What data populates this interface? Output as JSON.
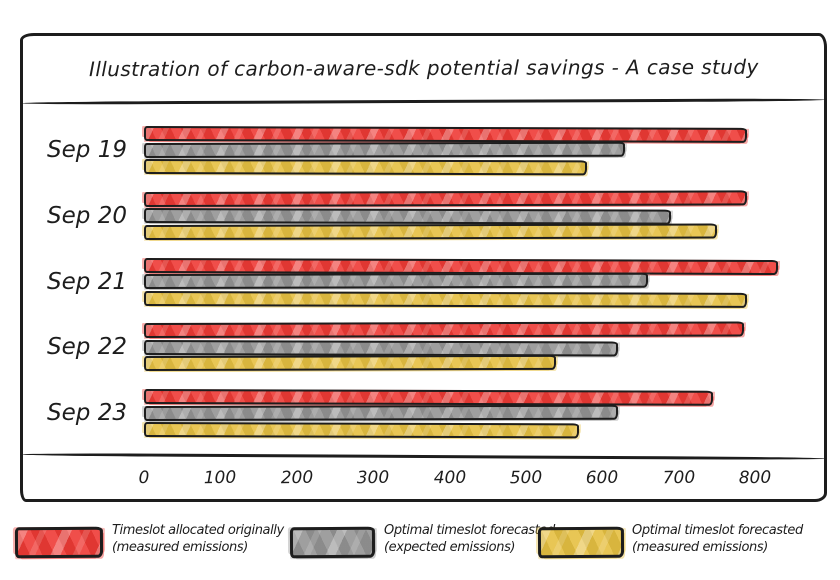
{
  "chart": {
    "title": "Illustration of carbon-aware-sdk potential savings - A case study"
  },
  "chart_data": {
    "type": "bar",
    "orientation": "horizontal",
    "title": "Illustration of carbon-aware-sdk potential savings - A case study",
    "categories": [
      "Sep 19",
      "Sep 20",
      "Sep 21",
      "Sep 22",
      "Sep 23"
    ],
    "series": [
      {
        "name": "Timeslot allocated originally (measured emissions)",
        "key": "original-measured",
        "color": "#ee3a35",
        "values": [
          790,
          790,
          830,
          785,
          745
        ]
      },
      {
        "name": "Optimal timeslot forecasted (expected emissions)",
        "key": "forecast-expected",
        "color": "#949494",
        "values": [
          630,
          690,
          660,
          620,
          620
        ]
      },
      {
        "name": "Optimal timeslot forecasted (measured emissions)",
        "key": "forecast-measured",
        "color": "#e6c042",
        "values": [
          580,
          750,
          790,
          540,
          570
        ]
      }
    ],
    "xlabel": "",
    "ylabel": "",
    "xlim": [
      0,
      800
    ],
    "x_ticks": [
      0,
      100,
      200,
      300,
      400,
      500,
      600,
      700,
      800
    ],
    "grid": false,
    "legend_position": "bottom",
    "style": "hand-drawn-sketch"
  },
  "legend": {
    "items": [
      {
        "label_line1": "Timeslot allocated originally",
        "label_line2": "(measured emissions)",
        "color": "#ee3a35"
      },
      {
        "label_line1": "Optimal timeslot forecasted",
        "label_line2": "(expected emissions)",
        "color": "#949494"
      },
      {
        "label_line1": "Optimal timeslot forecasted",
        "label_line2": "(measured emissions)",
        "color": "#e6c042"
      }
    ]
  },
  "colors": {
    "ink": "#1d1d1d",
    "background": "#ffffff",
    "bar_red": "#ee3a35",
    "bar_gray": "#949494",
    "bar_yellow": "#e6c042"
  }
}
